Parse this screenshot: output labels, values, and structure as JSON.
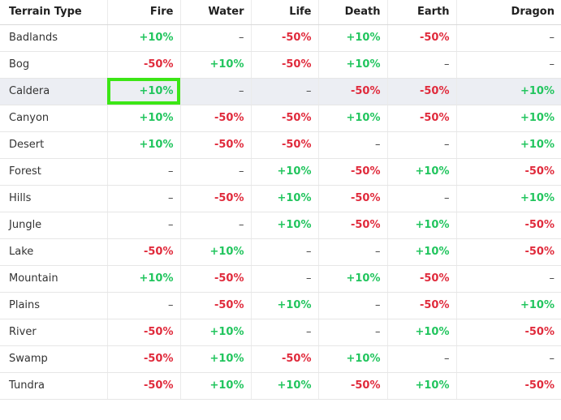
{
  "columns": [
    "Terrain Type",
    "Fire",
    "Water",
    "Life",
    "Death",
    "Earth",
    "Dragon"
  ],
  "rows": [
    {
      "terrain": "Badlands",
      "values": [
        "+10%",
        "–",
        "-50%",
        "+10%",
        "-50%",
        "–"
      ]
    },
    {
      "terrain": "Bog",
      "values": [
        "-50%",
        "+10%",
        "-50%",
        "+10%",
        "–",
        "–"
      ]
    },
    {
      "terrain": "Caldera",
      "values": [
        "+10%",
        "–",
        "–",
        "-50%",
        "-50%",
        "+10%"
      ],
      "highlighted": true,
      "focus_col": 0
    },
    {
      "terrain": "Canyon",
      "values": [
        "+10%",
        "-50%",
        "-50%",
        "+10%",
        "-50%",
        "+10%"
      ]
    },
    {
      "terrain": "Desert",
      "values": [
        "+10%",
        "-50%",
        "-50%",
        "–",
        "–",
        "+10%"
      ]
    },
    {
      "terrain": "Forest",
      "values": [
        "–",
        "–",
        "+10%",
        "-50%",
        "+10%",
        "-50%"
      ]
    },
    {
      "terrain": "Hills",
      "values": [
        "–",
        "-50%",
        "+10%",
        "-50%",
        "–",
        "+10%"
      ]
    },
    {
      "terrain": "Jungle",
      "values": [
        "–",
        "–",
        "+10%",
        "-50%",
        "+10%",
        "-50%"
      ]
    },
    {
      "terrain": "Lake",
      "values": [
        "-50%",
        "+10%",
        "–",
        "–",
        "+10%",
        "-50%"
      ]
    },
    {
      "terrain": "Mountain",
      "values": [
        "+10%",
        "-50%",
        "–",
        "+10%",
        "-50%",
        "–"
      ]
    },
    {
      "terrain": "Plains",
      "values": [
        "–",
        "-50%",
        "+10%",
        "–",
        "-50%",
        "+10%"
      ]
    },
    {
      "terrain": "River",
      "values": [
        "-50%",
        "+10%",
        "–",
        "–",
        "+10%",
        "-50%"
      ]
    },
    {
      "terrain": "Swamp",
      "values": [
        "-50%",
        "+10%",
        "-50%",
        "+10%",
        "–",
        "–"
      ]
    },
    {
      "terrain": "Tundra",
      "values": [
        "-50%",
        "+10%",
        "+10%",
        "-50%",
        "+10%",
        "-50%"
      ]
    }
  ],
  "colors": {
    "positive": "#22c55e",
    "negative": "#e02b3c",
    "focus_outline": "#3ce616",
    "row_highlight": "#eceef3"
  }
}
